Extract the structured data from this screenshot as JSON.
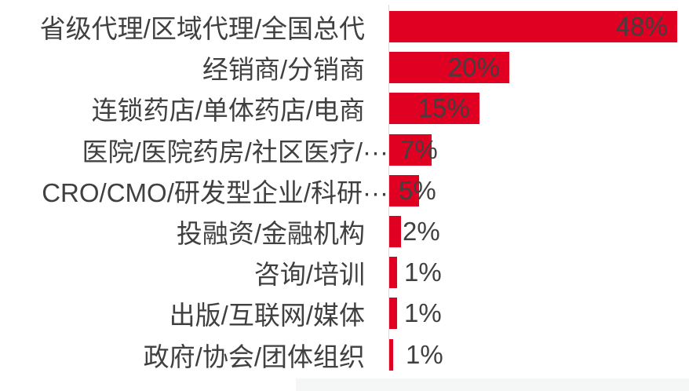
{
  "chart_data": {
    "type": "bar",
    "orientation": "horizontal",
    "title": "",
    "xlabel": "",
    "ylabel": "",
    "categories": [
      "省级代理/区域代理/全国总代",
      "经销商/分销商",
      "连锁药店/单体药店/电商",
      "医院/医院药房/社区医疗/···",
      "CRO/CMO/研发型企业/科研···",
      "投融资/金融机构",
      "咨询/培训",
      "出版/互联网/媒体",
      "政府/协会/团体组织"
    ],
    "values": [
      48,
      20,
      15,
      7,
      5,
      2,
      1,
      1,
      1
    ],
    "value_labels": [
      "48%",
      "20%",
      "15%",
      "7%",
      "5%",
      "2%",
      "1%",
      "1%",
      "1%"
    ],
    "bar_render_pct": [
      48,
      20,
      15,
      7,
      5,
      2,
      1.3,
      1.3,
      0.65
    ],
    "truncated_category_indexes": [
      3,
      4
    ],
    "xlim": [
      0,
      50
    ],
    "grid": false,
    "legend": false,
    "data_label_position": "inside-end",
    "colors": {
      "bar": "#E00022",
      "text": "#404040",
      "axis_line": "#D9D9D9",
      "background": "#FFFFFF",
      "footer_strip": "#F5F6F6"
    }
  }
}
